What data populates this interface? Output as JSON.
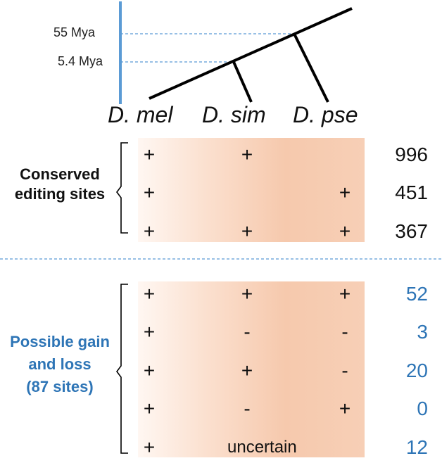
{
  "time_axis": {
    "labels": [
      "55 Mya",
      "5.4 Mya"
    ]
  },
  "species": [
    "D. mel",
    "D. sim",
    "D. pse"
  ],
  "conserved": {
    "label_line1": "Conserved",
    "label_line2": "editing sites",
    "rows": [
      {
        "mel": "+",
        "sim": "+",
        "pse": "",
        "count": "996"
      },
      {
        "mel": "+",
        "sim": "",
        "pse": "+",
        "count": "451"
      },
      {
        "mel": "+",
        "sim": "+",
        "pse": "+",
        "count": "367"
      }
    ]
  },
  "gain_loss": {
    "label_line1": "Possible gain",
    "label_line2": "and loss",
    "label_line3": "(87 sites)",
    "rows": [
      {
        "mel": "+",
        "sim": "+",
        "pse": "+",
        "count": "52"
      },
      {
        "mel": "+",
        "sim": "-",
        "pse": "-",
        "count": "3"
      },
      {
        "mel": "+",
        "sim": "+",
        "pse": "-",
        "count": "20"
      },
      {
        "mel": "+",
        "sim": "-",
        "pse": "+",
        "count": "0"
      },
      {
        "mel": "+",
        "sim": "uncertain",
        "pse": "",
        "count": "12"
      }
    ]
  },
  "colors": {
    "axis_blue": "#5b9bd5",
    "label_blue": "#2e75b6",
    "band_peach": "#f6c9ad"
  }
}
